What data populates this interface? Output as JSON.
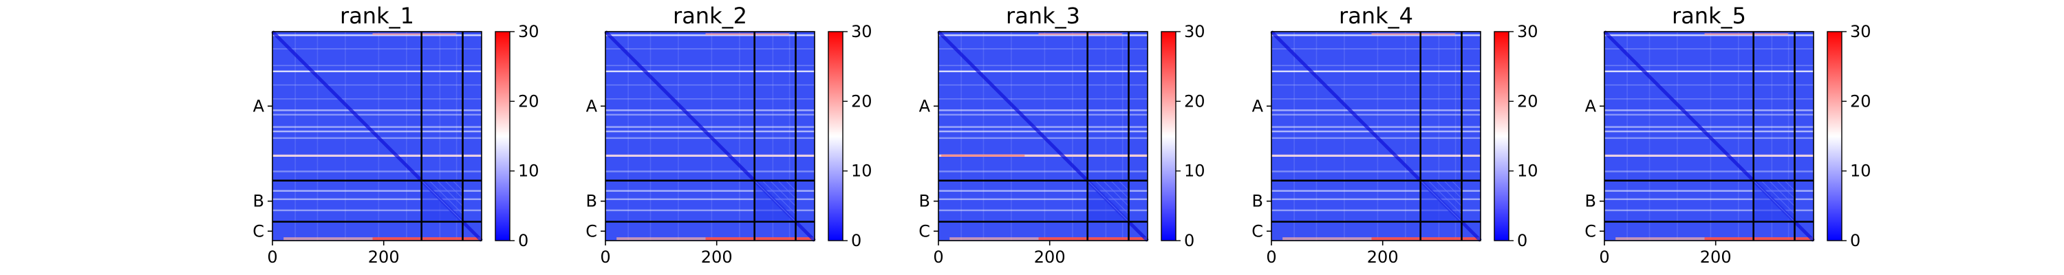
{
  "chart_data": [
    {
      "type": "heatmap",
      "title": "rank_1",
      "chain_labels": [
        "A",
        "B",
        "C"
      ],
      "chain_boundaries": [
        268,
        342
      ],
      "axis_length": 376,
      "xticks": [
        "0",
        "200"
      ],
      "colorbar_ticks": [
        "0",
        "10",
        "20",
        "30"
      ],
      "colorbar_range": [
        0,
        30
      ],
      "colormap": "bwr"
    },
    {
      "type": "heatmap",
      "title": "rank_2",
      "chain_labels": [
        "A",
        "B",
        "C"
      ],
      "chain_boundaries": [
        268,
        342
      ],
      "axis_length": 376,
      "xticks": [
        "0",
        "200"
      ],
      "colorbar_ticks": [
        "0",
        "10",
        "20",
        "30"
      ],
      "colorbar_range": [
        0,
        30
      ],
      "colormap": "bwr"
    },
    {
      "type": "heatmap",
      "title": "rank_3",
      "chain_labels": [
        "A",
        "B",
        "C"
      ],
      "chain_boundaries": [
        268,
        342
      ],
      "axis_length": 376,
      "xticks": [
        "0",
        "200"
      ],
      "colorbar_ticks": [
        "0",
        "10",
        "20",
        "30"
      ],
      "colorbar_range": [
        0,
        30
      ],
      "colormap": "bwr"
    },
    {
      "type": "heatmap",
      "title": "rank_4",
      "chain_labels": [
        "A",
        "B",
        "C"
      ],
      "chain_boundaries": [
        268,
        342
      ],
      "axis_length": 376,
      "xticks": [
        "0",
        "200"
      ],
      "colorbar_ticks": [
        "0",
        "10",
        "20",
        "30"
      ],
      "colorbar_range": [
        0,
        30
      ],
      "colormap": "bwr"
    },
    {
      "type": "heatmap",
      "title": "rank_5",
      "chain_labels": [
        "A",
        "B",
        "C"
      ],
      "chain_boundaries": [
        268,
        342
      ],
      "axis_length": 376,
      "xticks": [
        "0",
        "200"
      ],
      "colorbar_ticks": [
        "0",
        "10",
        "20",
        "30"
      ],
      "colorbar_range": [
        0,
        30
      ],
      "colormap": "bwr"
    }
  ],
  "colors": {
    "low": "#0000ff",
    "mid": "#ffffff",
    "high": "#ff0000",
    "heat_base": "#3a50f5"
  }
}
